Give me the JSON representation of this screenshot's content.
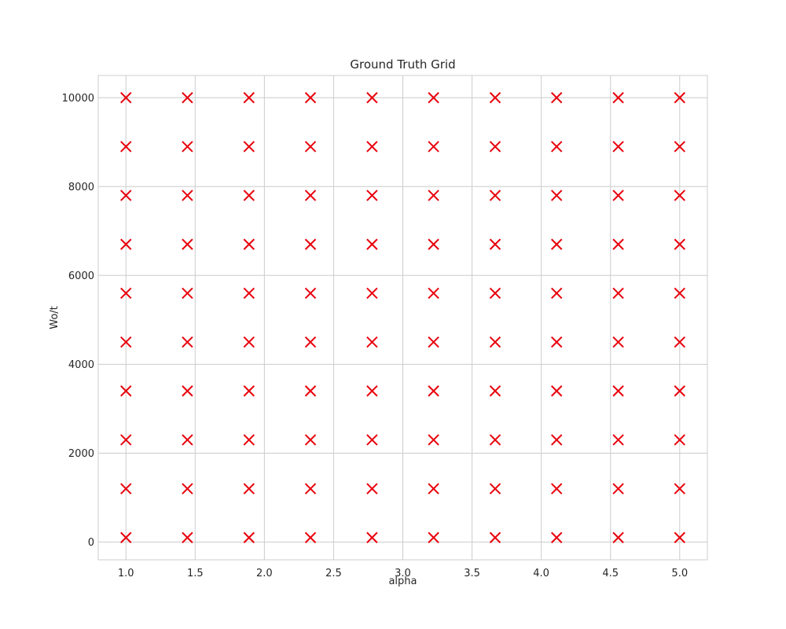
{
  "chart_data": {
    "type": "scatter",
    "title": "Ground Truth Grid",
    "xlabel": "alpha",
    "ylabel": "Wo/t",
    "xlim": [
      0.8,
      5.2
    ],
    "ylim": [
      -400,
      10500
    ],
    "xticks": [
      1.0,
      1.5,
      2.0,
      2.5,
      3.0,
      3.5,
      4.0,
      4.5,
      5.0
    ],
    "xtick_labels": [
      "1.0",
      "1.5",
      "2.0",
      "2.5",
      "3.0",
      "3.5",
      "4.0",
      "4.5",
      "5.0"
    ],
    "yticks": [
      0,
      2000,
      4000,
      6000,
      8000,
      10000
    ],
    "ytick_labels": [
      "0",
      "2000",
      "4000",
      "6000",
      "8000",
      "10000"
    ],
    "grid": true,
    "marker": "x",
    "color": "#e8000b",
    "x_values": [
      1.0,
      1.444,
      1.889,
      2.333,
      2.778,
      3.222,
      3.667,
      4.111,
      4.556,
      5.0
    ],
    "y_values": [
      100,
      1200,
      2300,
      3400,
      4500,
      5600,
      6700,
      7800,
      8900,
      10000
    ]
  }
}
